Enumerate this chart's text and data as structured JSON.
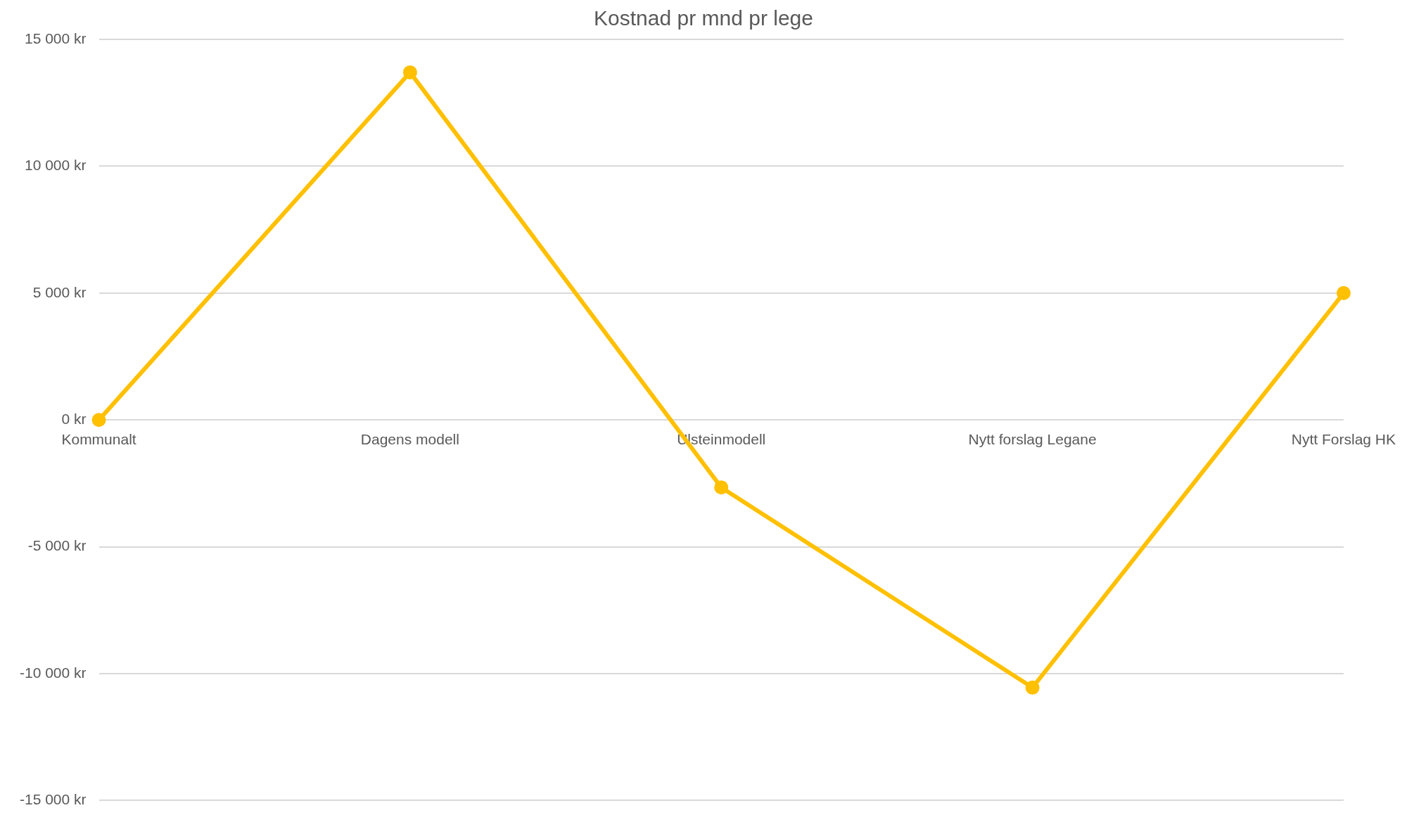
{
  "chart_data": {
    "type": "line",
    "title": "Kostnad pr mnd pr lege",
    "categories": [
      "Kommunalt",
      "Dagens modell",
      "Ulsteinmodell",
      "Nytt forslag Legane",
      "Nytt Forslag HK"
    ],
    "series": [
      {
        "color": "#ffc000",
        "values": [
          0,
          13700,
          -2660,
          -10550,
          5000
        ]
      }
    ],
    "ylim": [
      -15000,
      15000
    ],
    "yticks": [
      {
        "value": -15000,
        "label": "-15 000 kr"
      },
      {
        "value": -10000,
        "label": "-10 000 kr"
      },
      {
        "value": -5000,
        "label": "-5 000 kr"
      },
      {
        "value": 0,
        "label": "0 kr"
      },
      {
        "value": 5000,
        "label": "5 000 kr"
      },
      {
        "value": 10000,
        "label": "10 000 kr"
      },
      {
        "value": 15000,
        "label": "15 000 kr"
      }
    ],
    "grid": "y",
    "legend": false,
    "marker": "circle",
    "line_style": "solid"
  }
}
